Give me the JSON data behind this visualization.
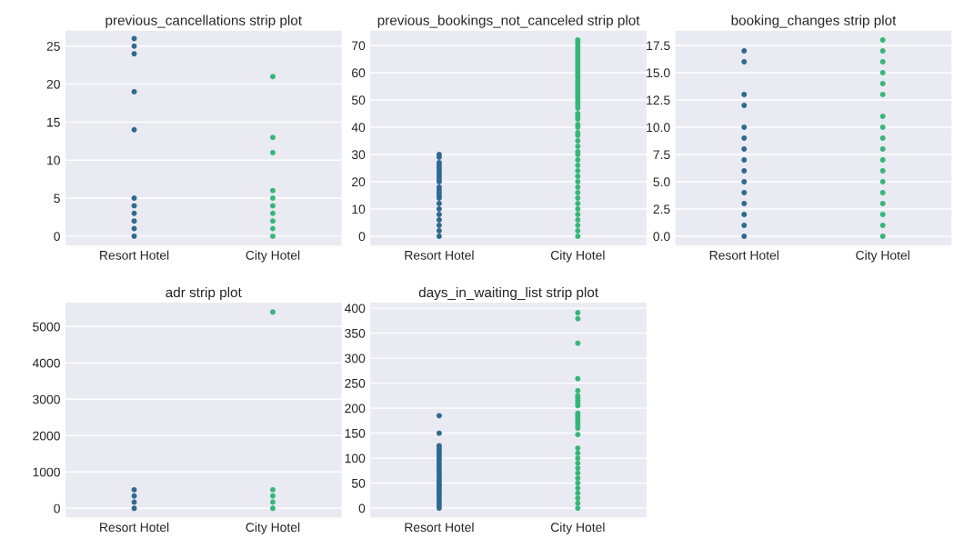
{
  "chart_data": [
    {
      "type": "scatter",
      "title": "previous_cancellations strip plot",
      "categories": [
        "Resort Hotel",
        "City Hotel"
      ],
      "ylim": [
        -1.3,
        27.1
      ],
      "yticks": [
        0,
        5,
        10,
        15,
        20,
        25
      ],
      "grid": "y",
      "marker": "circle",
      "series": [
        {
          "color": "#2e6a8e",
          "x": [
            "Resort Hotel",
            "Resort Hotel",
            "Resort Hotel",
            "Resort Hotel",
            "Resort Hotel",
            "Resort Hotel",
            "Resort Hotel",
            "Resort Hotel",
            "Resort Hotel",
            "Resort Hotel",
            "Resort Hotel"
          ],
          "values": [
            0,
            1,
            2,
            3,
            4,
            5,
            14,
            19,
            24,
            25,
            26
          ]
        },
        {
          "color": "#35b779",
          "x": [
            "City Hotel",
            "City Hotel",
            "City Hotel",
            "City Hotel",
            "City Hotel",
            "City Hotel",
            "City Hotel",
            "City Hotel",
            "City Hotel",
            "City Hotel"
          ],
          "values": [
            0,
            1,
            2,
            3,
            4,
            5,
            6,
            11,
            13,
            21
          ]
        }
      ]
    },
    {
      "type": "scatter",
      "title": "previous_bookings_not_canceled strip plot",
      "categories": [
        "Resort Hotel",
        "City Hotel"
      ],
      "ylim": [
        -3.6,
        75.6
      ],
      "yticks": [
        0,
        10,
        20,
        30,
        40,
        50,
        60,
        70
      ],
      "grid": "y",
      "marker": "circle",
      "series": [
        {
          "color": "#2e6a8e",
          "x": [
            "Resort Hotel",
            "Resort Hotel",
            "Resort Hotel",
            "Resort Hotel",
            "Resort Hotel",
            "Resort Hotel",
            "Resort Hotel",
            "Resort Hotel",
            "Resort Hotel",
            "Resort Hotel",
            "Resort Hotel",
            "Resort Hotel",
            "Resort Hotel",
            "Resort Hotel",
            "Resort Hotel",
            "Resort Hotel",
            "Resort Hotel",
            "Resort Hotel",
            "Resort Hotel",
            "Resort Hotel",
            "Resort Hotel",
            "Resort Hotel"
          ],
          "values": [
            0,
            2,
            4,
            6,
            8,
            10,
            12,
            14,
            15,
            16,
            17,
            18,
            20,
            21,
            22,
            23,
            24,
            25,
            26,
            27,
            29,
            30
          ]
        },
        {
          "color": "#35b779",
          "x": [
            "City Hotel",
            "City Hotel",
            "City Hotel",
            "City Hotel",
            "City Hotel",
            "City Hotel",
            "City Hotel",
            "City Hotel",
            "City Hotel",
            "City Hotel",
            "City Hotel",
            "City Hotel",
            "City Hotel",
            "City Hotel",
            "City Hotel",
            "City Hotel",
            "City Hotel",
            "City Hotel",
            "City Hotel",
            "City Hotel",
            "City Hotel",
            "City Hotel",
            "City Hotel",
            "City Hotel",
            "City Hotel",
            "City Hotel",
            "City Hotel",
            "City Hotel",
            "City Hotel",
            "City Hotel",
            "City Hotel",
            "City Hotel",
            "City Hotel",
            "City Hotel",
            "City Hotel",
            "City Hotel",
            "City Hotel",
            "City Hotel",
            "City Hotel",
            "City Hotel",
            "City Hotel",
            "City Hotel",
            "City Hotel",
            "City Hotel",
            "City Hotel",
            "City Hotel",
            "City Hotel",
            "City Hotel",
            "City Hotel",
            "City Hotel",
            "City Hotel",
            "City Hotel"
          ],
          "values": [
            0,
            2,
            4,
            6,
            8,
            10,
            12,
            14,
            16,
            18,
            20,
            22,
            24,
            26,
            28,
            30,
            31,
            33,
            35,
            37,
            38,
            40,
            41,
            43,
            44,
            45,
            47,
            48,
            49,
            50,
            51,
            52,
            53,
            54,
            55,
            56,
            57,
            58,
            59,
            60,
            61,
            62,
            63,
            64,
            65,
            66,
            67,
            68,
            69,
            70,
            71,
            72
          ]
        }
      ]
    },
    {
      "type": "scatter",
      "title": "booking_changes strip plot",
      "categories": [
        "Resort Hotel",
        "City Hotel"
      ],
      "ylim": [
        -0.9,
        18.9
      ],
      "yticks": [
        {
          "value": 0,
          "label": "0.0"
        },
        {
          "value": 2.5,
          "label": "2.5"
        },
        {
          "value": 5,
          "label": "5.0"
        },
        {
          "value": 7.5,
          "label": "7.5"
        },
        {
          "value": 10,
          "label": "10.0"
        },
        {
          "value": 12.5,
          "label": "12.5"
        },
        {
          "value": 15,
          "label": "15.0"
        },
        {
          "value": 17.5,
          "label": "17.5"
        }
      ],
      "grid": "y",
      "marker": "circle",
      "series": [
        {
          "color": "#2e6a8e",
          "x": [
            "Resort Hotel",
            "Resort Hotel",
            "Resort Hotel",
            "Resort Hotel",
            "Resort Hotel",
            "Resort Hotel",
            "Resort Hotel",
            "Resort Hotel",
            "Resort Hotel",
            "Resort Hotel",
            "Resort Hotel",
            "Resort Hotel",
            "Resort Hotel",
            "Resort Hotel",
            "Resort Hotel"
          ],
          "values": [
            0,
            1,
            2,
            3,
            4,
            5,
            6,
            7,
            8,
            9,
            10,
            12,
            13,
            16,
            17
          ]
        },
        {
          "color": "#35b779",
          "x": [
            "City Hotel",
            "City Hotel",
            "City Hotel",
            "City Hotel",
            "City Hotel",
            "City Hotel",
            "City Hotel",
            "City Hotel",
            "City Hotel",
            "City Hotel",
            "City Hotel",
            "City Hotel",
            "City Hotel",
            "City Hotel",
            "City Hotel",
            "City Hotel",
            "City Hotel",
            "City Hotel"
          ],
          "values": [
            0,
            1,
            2,
            3,
            4,
            5,
            6,
            7,
            8,
            9,
            10,
            11,
            13,
            14,
            15,
            16,
            17,
            18
          ]
        }
      ]
    },
    {
      "type": "scatter",
      "title": "adr strip plot",
      "categories": [
        "Resort Hotel",
        "City Hotel"
      ],
      "ylim": [
        -270,
        5670
      ],
      "yticks": [
        0,
        1000,
        2000,
        3000,
        4000,
        5000
      ],
      "grid": "y",
      "marker": "circle",
      "series": [
        {
          "color": "#2e6a8e",
          "x": [
            "Resort Hotel",
            "Resort Hotel",
            "Resort Hotel",
            "Resort Hotel"
          ],
          "values": [
            0,
            170,
            340,
            510
          ]
        },
        {
          "color": "#35b779",
          "x": [
            "City Hotel",
            "City Hotel",
            "City Hotel",
            "City Hotel",
            "City Hotel"
          ],
          "values": [
            0,
            170,
            340,
            510,
            5400
          ]
        }
      ]
    },
    {
      "type": "scatter",
      "title": "days_in_waiting_list strip plot",
      "categories": [
        "Resort Hotel",
        "City Hotel"
      ],
      "ylim": [
        -20,
        412
      ],
      "yticks": [
        0,
        50,
        100,
        150,
        200,
        250,
        300,
        350,
        400
      ],
      "grid": "y",
      "marker": "circle",
      "series": [
        {
          "color": "#2e6a8e",
          "x": [
            "Resort Hotel",
            "Resort Hotel",
            "Resort Hotel",
            "Resort Hotel",
            "Resort Hotel",
            "Resort Hotel",
            "Resort Hotel",
            "Resort Hotel",
            "Resort Hotel",
            "Resort Hotel",
            "Resort Hotel",
            "Resort Hotel",
            "Resort Hotel",
            "Resort Hotel",
            "Resort Hotel",
            "Resort Hotel",
            "Resort Hotel",
            "Resort Hotel",
            "Resort Hotel",
            "Resort Hotel",
            "Resort Hotel",
            "Resort Hotel",
            "Resort Hotel",
            "Resort Hotel",
            "Resort Hotel",
            "Resort Hotel",
            "Resort Hotel",
            "Resort Hotel"
          ],
          "values": [
            0,
            5,
            10,
            15,
            20,
            25,
            30,
            35,
            40,
            45,
            50,
            55,
            60,
            65,
            70,
            75,
            80,
            85,
            90,
            95,
            100,
            105,
            110,
            115,
            120,
            125,
            150,
            185
          ]
        },
        {
          "color": "#35b779",
          "x": [
            "City Hotel",
            "City Hotel",
            "City Hotel",
            "City Hotel",
            "City Hotel",
            "City Hotel",
            "City Hotel",
            "City Hotel",
            "City Hotel",
            "City Hotel",
            "City Hotel",
            "City Hotel",
            "City Hotel",
            "City Hotel",
            "City Hotel",
            "City Hotel",
            "City Hotel",
            "City Hotel",
            "City Hotel",
            "City Hotel",
            "City Hotel",
            "City Hotel",
            "City Hotel",
            "City Hotel",
            "City Hotel",
            "City Hotel",
            "City Hotel",
            "City Hotel",
            "City Hotel",
            "City Hotel",
            "City Hotel"
          ],
          "values": [
            0,
            10,
            20,
            30,
            40,
            50,
            60,
            70,
            80,
            90,
            100,
            110,
            120,
            147,
            160,
            165,
            170,
            175,
            180,
            185,
            190,
            205,
            210,
            215,
            220,
            225,
            235,
            259,
            330,
            379,
            391
          ]
        }
      ]
    }
  ]
}
